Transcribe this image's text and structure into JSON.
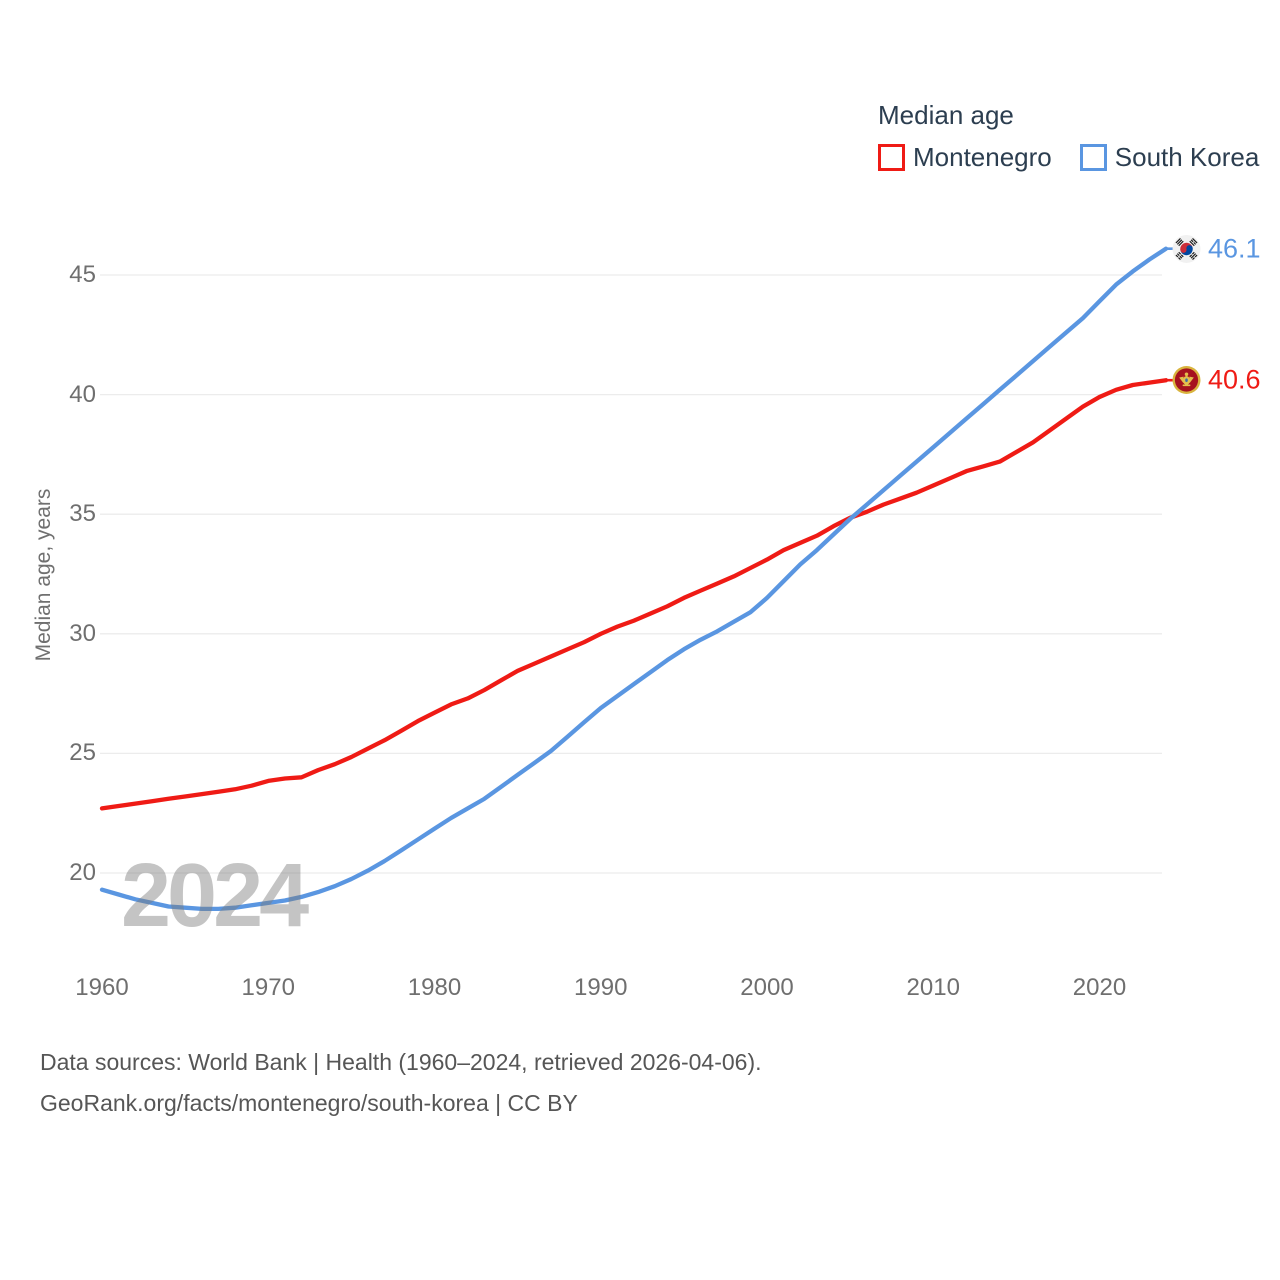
{
  "legend": {
    "title": "Median age"
  },
  "watermark": {
    "text": "2024"
  },
  "footer": {
    "line1": "Data sources: World Bank | Health (1960–2024, retrieved 2026-04-06).",
    "line2": "GeoRank.org/facts/montenegro/south-korea | CC BY"
  },
  "chart_data": {
    "type": "line",
    "title": "Median age",
    "xlabel": "",
    "ylabel": "Median age, years",
    "grid": "horizontal",
    "legend_position": "top-right",
    "x_ticks": [
      1960,
      1970,
      1980,
      1990,
      2000,
      2010,
      2020
    ],
    "y_ticks": [
      20,
      25,
      30,
      35,
      40,
      45
    ],
    "ylim": [
      17.5,
      47.5
    ],
    "years": [
      1960,
      1961,
      1962,
      1963,
      1964,
      1965,
      1966,
      1967,
      1968,
      1969,
      1970,
      1971,
      1972,
      1973,
      1974,
      1975,
      1976,
      1977,
      1978,
      1979,
      1980,
      1981,
      1982,
      1983,
      1984,
      1985,
      1986,
      1987,
      1988,
      1989,
      1990,
      1991,
      1992,
      1993,
      1994,
      1995,
      1996,
      1997,
      1998,
      1999,
      2000,
      2001,
      2002,
      2003,
      2004,
      2005,
      2006,
      2007,
      2008,
      2009,
      2010,
      2011,
      2012,
      2013,
      2014,
      2015,
      2016,
      2017,
      2018,
      2019,
      2020,
      2021,
      2022,
      2023,
      2024
    ],
    "series": [
      {
        "name": "Montenegro",
        "color": "#ef1b15",
        "end_label": "40.6",
        "flag": "montenegro-flag-icon",
        "values": [
          22.7,
          22.8,
          22.9,
          23.0,
          23.1,
          23.2,
          23.3,
          23.4,
          23.5,
          23.65,
          23.85,
          23.95,
          24.0,
          24.3,
          24.55,
          24.85,
          25.2,
          25.55,
          25.95,
          26.35,
          26.7,
          27.05,
          27.3,
          27.65,
          28.05,
          28.45,
          28.75,
          29.05,
          29.35,
          29.65,
          30.0,
          30.3,
          30.55,
          30.85,
          31.15,
          31.5,
          31.8,
          32.1,
          32.4,
          32.75,
          33.1,
          33.5,
          33.8,
          34.1,
          34.5,
          34.85,
          35.1,
          35.4,
          35.65,
          35.9,
          36.2,
          36.5,
          36.8,
          37.0,
          37.2,
          37.6,
          38.0,
          38.5,
          39.0,
          39.5,
          39.9,
          40.2,
          40.4,
          40.5,
          40.6
        ]
      },
      {
        "name": "South Korea",
        "color": "#5a96e1",
        "end_label": "46.1",
        "flag": "south-korea-flag-icon",
        "values": [
          19.3,
          19.1,
          18.9,
          18.75,
          18.6,
          18.55,
          18.5,
          18.5,
          18.55,
          18.65,
          18.75,
          18.85,
          19.0,
          19.2,
          19.45,
          19.75,
          20.1,
          20.5,
          20.95,
          21.4,
          21.85,
          22.3,
          22.7,
          23.1,
          23.6,
          24.1,
          24.6,
          25.1,
          25.7,
          26.3,
          26.9,
          27.4,
          27.9,
          28.4,
          28.9,
          29.35,
          29.75,
          30.1,
          30.5,
          30.9,
          31.5,
          32.2,
          32.9,
          33.5,
          34.15,
          34.8,
          35.4,
          36.0,
          36.6,
          37.2,
          37.8,
          38.4,
          39.0,
          39.6,
          40.2,
          40.8,
          41.4,
          42.0,
          42.6,
          43.2,
          43.9,
          44.6,
          45.15,
          45.65,
          46.1
        ]
      }
    ]
  }
}
